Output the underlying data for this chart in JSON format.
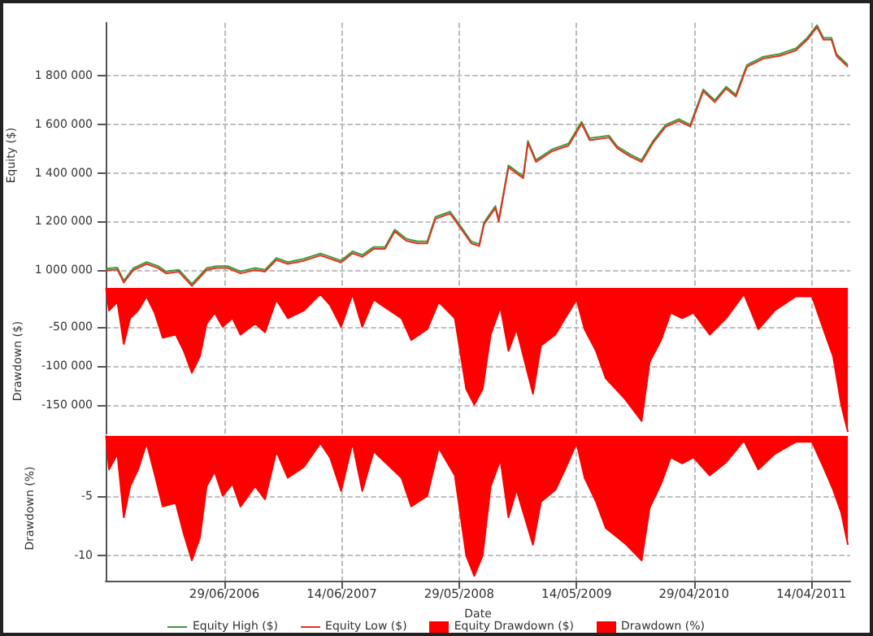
{
  "chart_data": [
    {
      "type": "line",
      "ylabel": "Equity ($)",
      "legend": "bottom",
      "grid": true,
      "tick_labels": "y",
      "x": [
        "2005-07-11",
        "2005-08-14",
        "2005-09-02",
        "2005-10-01",
        "2005-11-09",
        "2005-12-13",
        "2006-01-06",
        "2006-02-13",
        "2006-03-24",
        "2006-05-07",
        "2006-06-05",
        "2006-07-09",
        "2006-08-16",
        "2006-09-29",
        "2006-10-28",
        "2006-12-01",
        "2007-01-04",
        "2007-02-21",
        "2007-04-11",
        "2007-05-10",
        "2007-06-12",
        "2007-07-16",
        "2007-08-14",
        "2007-09-17",
        "2007-10-21",
        "2007-11-19",
        "2007-12-23",
        "2008-01-26",
        "2008-02-24",
        "2008-03-19",
        "2008-05-02",
        "2008-05-31",
        "2008-07-04",
        "2008-07-28",
        "2008-08-11",
        "2008-09-14",
        "2008-09-24",
        "2008-10-23",
        "2008-12-06",
        "2008-12-20",
        "2009-01-13",
        "2009-03-03",
        "2009-04-20",
        "2009-05-29",
        "2009-06-22",
        "2009-08-19",
        "2009-09-12",
        "2009-10-21",
        "2009-11-24",
        "2009-12-28",
        "2010-02-04",
        "2010-03-15",
        "2010-04-18",
        "2010-05-27",
        "2010-06-30",
        "2010-08-03",
        "2010-09-01",
        "2010-10-04",
        "2010-11-22",
        "2011-01-09",
        "2011-02-27",
        "2011-04-02",
        "2011-05-01",
        "2011-05-20",
        "2011-06-13",
        "2011-06-28",
        "2011-08-01"
      ],
      "series": [
        {
          "name": "Equity High ($)",
          "color": "#3c9a3c",
          "values": [
            1005000,
            1009000,
            955000,
            1007000,
            1032000,
            1015000,
            993000,
            1000000,
            941000,
            1007000,
            1015000,
            1015000,
            993000,
            1007000,
            1000000,
            1049000,
            1032000,
            1045000,
            1067000,
            1054000,
            1038000,
            1076000,
            1061000,
            1094000,
            1094000,
            1166000,
            1128000,
            1117000,
            1117000,
            1218000,
            1240000,
            1184000,
            1117000,
            1106000,
            1195000,
            1263000,
            1207000,
            1431000,
            1386000,
            1532000,
            1453000,
            1498000,
            1521000,
            1611000,
            1543000,
            1554000,
            1510000,
            1476000,
            1453000,
            1532000,
            1599000,
            1622000,
            1599000,
            1745000,
            1700000,
            1756000,
            1723000,
            1846000,
            1880000,
            1891000,
            1914000,
            1958000,
            2010000,
            1958000,
            1958000,
            1891000,
            1846000
          ]
        },
        {
          "name": "Equity Low ($)",
          "color": "#e53222",
          "values": [
            997000,
            1001000,
            947000,
            999000,
            1024000,
            1007000,
            985000,
            992000,
            933000,
            999000,
            1007000,
            1007000,
            985000,
            999000,
            992000,
            1041000,
            1024000,
            1037000,
            1059000,
            1046000,
            1030000,
            1068000,
            1053000,
            1086000,
            1086000,
            1158000,
            1120000,
            1109000,
            1109000,
            1210000,
            1232000,
            1176000,
            1109000,
            1098000,
            1187000,
            1255000,
            1199000,
            1423000,
            1378000,
            1524000,
            1445000,
            1490000,
            1513000,
            1603000,
            1535000,
            1546000,
            1502000,
            1468000,
            1445000,
            1524000,
            1591000,
            1614000,
            1591000,
            1737000,
            1692000,
            1748000,
            1715000,
            1838000,
            1872000,
            1883000,
            1906000,
            1950000,
            2002000,
            1950000,
            1950000,
            1883000,
            1838000
          ]
        }
      ],
      "xlim": [
        "2005-07-10",
        "2011-08-08"
      ],
      "xticks": [
        {
          "value": "2006-06-29",
          "label": null
        },
        {
          "value": "2007-06-14",
          "label": null
        },
        {
          "value": "2008-05-29",
          "label": null
        },
        {
          "value": "2009-05-14",
          "label": null
        },
        {
          "value": "2010-04-29",
          "label": null
        },
        {
          "value": "2011-04-14",
          "label": null
        }
      ],
      "ylim": [
        925000,
        2020000
      ],
      "yticks": [
        {
          "value": 1000000,
          "label": "1 000 000"
        },
        {
          "value": 1200000,
          "label": "1 200 000"
        },
        {
          "value": 1400000,
          "label": "1 400 000"
        },
        {
          "value": 1600000,
          "label": "1 600 000"
        },
        {
          "value": 1800000,
          "label": "1 800 000"
        }
      ]
    },
    {
      "type": "area",
      "ylabel": "Drawdown ($)",
      "legend": "bottom",
      "grid": true,
      "tick_labels": "y",
      "x": [
        "2005-07-11",
        "2005-07-20",
        "2005-08-14",
        "2005-09-02",
        "2005-09-21",
        "2005-10-15",
        "2005-11-09",
        "2005-12-03",
        "2005-12-27",
        "2006-02-04",
        "2006-02-28",
        "2006-03-24",
        "2006-04-17",
        "2006-05-07",
        "2006-05-31",
        "2006-06-24",
        "2006-07-23",
        "2006-08-16",
        "2006-09-29",
        "2006-10-28",
        "2006-12-01",
        "2007-01-04",
        "2007-02-21",
        "2007-04-11",
        "2007-05-10",
        "2007-06-12",
        "2007-07-16",
        "2007-08-14",
        "2007-09-17",
        "2007-10-21",
        "2007-12-09",
        "2008-01-07",
        "2008-02-24",
        "2008-03-29",
        "2008-05-16",
        "2008-06-19",
        "2008-07-13",
        "2008-08-07",
        "2008-08-31",
        "2008-09-29",
        "2008-10-23",
        "2008-11-16",
        "2009-01-04",
        "2009-01-28",
        "2009-03-12",
        "2009-04-10",
        "2009-05-14",
        "2009-06-07",
        "2009-07-11",
        "2009-08-09",
        "2009-10-06",
        "2009-11-24",
        "2009-12-18",
        "2010-01-21",
        "2010-02-19",
        "2010-03-25",
        "2010-04-28",
        "2010-06-15",
        "2010-08-03",
        "2010-09-25",
        "2010-11-07",
        "2010-12-26",
        "2011-02-27",
        "2011-04-16",
        "2011-05-20",
        "2011-06-18",
        "2011-07-12",
        "2011-08-01"
      ],
      "series": [
        {
          "name": "Equity Drawdown ($)",
          "color": "#ff0000",
          "values": [
            0,
            -29000,
            -18000,
            -72000,
            -39000,
            -29000,
            -11000,
            -32000,
            -64000,
            -60000,
            -81000,
            -109000,
            -88000,
            -46000,
            -32000,
            -50000,
            -39000,
            -60000,
            -46000,
            -57000,
            -15000,
            -39000,
            -29000,
            -8000,
            -22000,
            -50000,
            -8000,
            -50000,
            -15000,
            -25000,
            -39000,
            -67000,
            -53000,
            -18000,
            -39000,
            -130000,
            -150000,
            -130000,
            -60000,
            -25000,
            -81000,
            -53000,
            -136000,
            -74000,
            -60000,
            -39000,
            -15000,
            -53000,
            -81000,
            -116000,
            -143000,
            -171000,
            -95000,
            -67000,
            -32000,
            -39000,
            -32000,
            -60000,
            -39000,
            -8000,
            -53000,
            -29000,
            -11000,
            -11000,
            -53000,
            -88000,
            -150000,
            -185000
          ]
        }
      ],
      "xlim": [
        "2005-07-10",
        "2011-08-08"
      ],
      "xticks": [
        {
          "value": "2006-06-29",
          "label": null
        },
        {
          "value": "2007-06-14",
          "label": null
        },
        {
          "value": "2008-05-29",
          "label": null
        },
        {
          "value": "2009-05-14",
          "label": null
        },
        {
          "value": "2010-04-29",
          "label": null
        },
        {
          "value": "2011-04-14",
          "label": null
        }
      ],
      "ylim": [
        -188000,
        0
      ],
      "yticks": [
        {
          "value": -150000,
          "label": "-150 000"
        },
        {
          "value": -100000,
          "label": "-100 000"
        },
        {
          "value": -50000,
          "label": "-50 000"
        }
      ]
    },
    {
      "type": "area",
      "ylabel": "Drawdown (%)",
      "xlabel": "Date",
      "legend": "bottom",
      "grid": true,
      "x": [
        "2005-07-11",
        "2005-07-20",
        "2005-08-14",
        "2005-09-02",
        "2005-09-21",
        "2005-10-15",
        "2005-11-09",
        "2005-12-03",
        "2005-12-27",
        "2006-02-04",
        "2006-02-28",
        "2006-03-24",
        "2006-04-17",
        "2006-05-07",
        "2006-05-31",
        "2006-06-24",
        "2006-07-23",
        "2006-08-16",
        "2006-09-29",
        "2006-10-28",
        "2006-12-01",
        "2007-01-04",
        "2007-02-21",
        "2007-04-11",
        "2007-05-10",
        "2007-06-12",
        "2007-07-16",
        "2007-08-14",
        "2007-09-17",
        "2007-10-21",
        "2007-12-09",
        "2008-01-07",
        "2008-02-24",
        "2008-03-29",
        "2008-05-16",
        "2008-06-19",
        "2008-07-13",
        "2008-08-07",
        "2008-08-31",
        "2008-09-29",
        "2008-10-23",
        "2008-11-16",
        "2009-01-04",
        "2009-01-28",
        "2009-03-12",
        "2009-04-10",
        "2009-05-14",
        "2009-06-07",
        "2009-07-11",
        "2009-08-09",
        "2009-10-06",
        "2009-11-24",
        "2009-12-18",
        "2010-01-21",
        "2010-02-19",
        "2010-03-25",
        "2010-04-28",
        "2010-06-15",
        "2010-08-03",
        "2010-09-25",
        "2010-11-07",
        "2010-12-26",
        "2011-02-27",
        "2011-04-16",
        "2011-05-20",
        "2011-06-18",
        "2011-07-12",
        "2011-08-01"
      ],
      "series": [
        {
          "name": "Drawdown (%)",
          "color": "#ff0000",
          "values": [
            0,
            -2.8,
            -1.5,
            -6.8,
            -4.2,
            -2.8,
            -0.6,
            -3.2,
            -5.9,
            -5.6,
            -8.2,
            -10.4,
            -8.5,
            -4.2,
            -3,
            -5,
            -4,
            -5.9,
            -4.2,
            -5.3,
            -1.3,
            -3.5,
            -2.6,
            -0.6,
            -1.8,
            -4.6,
            -0.6,
            -4.6,
            -1.3,
            -2.2,
            -3.5,
            -5.9,
            -5,
            -1,
            -3.3,
            -10,
            -11.7,
            -10,
            -4.2,
            -2,
            -6.8,
            -4.5,
            -9.1,
            -5.5,
            -4.5,
            -2.8,
            -0.6,
            -3.5,
            -5.5,
            -7.7,
            -9,
            -10.4,
            -6,
            -4,
            -1.8,
            -2.3,
            -1.8,
            -3.3,
            -2.2,
            -0.4,
            -2.8,
            -1.5,
            -0.5,
            -0.5,
            -2.6,
            -4.5,
            -6.4,
            -9.1
          ]
        }
      ],
      "xlim": [
        "2005-07-10",
        "2011-08-08"
      ],
      "xticks": [
        {
          "value": "2006-06-29",
          "label": "29/06/2006"
        },
        {
          "value": "2007-06-14",
          "label": "14/06/2007"
        },
        {
          "value": "2008-05-29",
          "label": "29/05/2008"
        },
        {
          "value": "2009-05-14",
          "label": "14/05/2009"
        },
        {
          "value": "2010-04-29",
          "label": "29/04/2010"
        },
        {
          "value": "2011-04-14",
          "label": "14/04/2011"
        }
      ],
      "ylim": [
        -12.1,
        0
      ],
      "yticks": [
        -10,
        -5
      ]
    }
  ]
}
